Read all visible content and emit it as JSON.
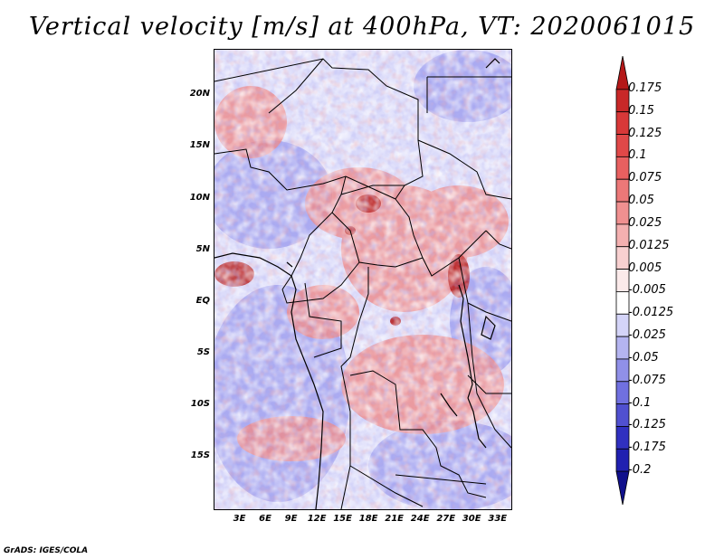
{
  "title": "Vertical velocity [m/s] at 400hPa, VT: 2020061015",
  "credit": "GrADS: IGES/COLA",
  "map": {
    "lat_ticks": [
      "20N",
      "15N",
      "10N",
      "5N",
      "EQ",
      "5S",
      "10S",
      "15S"
    ],
    "lat_values": [
      20,
      15,
      10,
      5,
      0,
      -5,
      -10,
      -15
    ],
    "lon_ticks": [
      "3E",
      "6E",
      "9E",
      "12E",
      "15E",
      "18E",
      "21E",
      "24E",
      "27E",
      "30E",
      "33E"
    ],
    "lon_values": [
      3,
      6,
      9,
      12,
      15,
      18,
      21,
      24,
      27,
      30,
      33
    ],
    "lon_range": [
      0,
      34.5
    ],
    "lat_range": [
      -20,
      24.5
    ]
  },
  "colorbar": {
    "labels": [
      "0.175",
      "0.15",
      "0.125",
      "0.1",
      "0.075",
      "0.05",
      "0.025",
      "0.0125",
      "0.005",
      "-0.005",
      "-0.0125",
      "-0.025",
      "-0.05",
      "-0.075",
      "-0.1",
      "-0.125",
      "-0.175",
      "-0.2"
    ],
    "colors": [
      "#b41818",
      "#c82828",
      "#d83838",
      "#e04848",
      "#e86060",
      "#ec7878",
      "#f09090",
      "#f4b0b0",
      "#f8d0d0",
      "#fbeaea",
      "#ffffff",
      "#d4d4f8",
      "#b4b4f0",
      "#9090e8",
      "#7070e0",
      "#5050d0",
      "#3030c0",
      "#2020b0",
      "#10108c"
    ]
  },
  "palette": {
    "base_fill": "#dcdcfa",
    "positive": "#e87878",
    "strong_positive": "#b41818",
    "negative": "#7a7ae6"
  }
}
